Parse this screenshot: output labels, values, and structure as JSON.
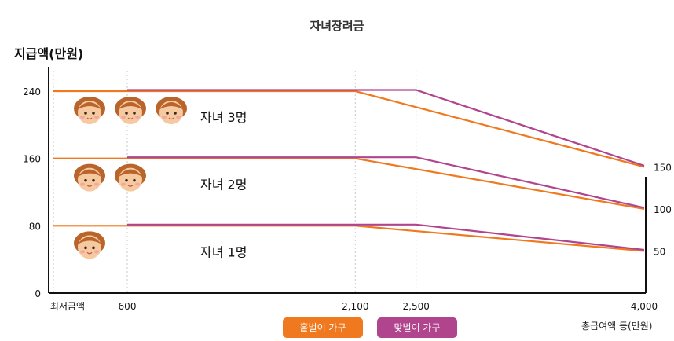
{
  "chart_data": {
    "type": "line",
    "title": "자녀장려금",
    "ylabel": "지급액(만원)",
    "xlabel": "총급여액 등(만원)",
    "x_ticks": [
      "최저금액",
      "600",
      "2,100",
      "2,500",
      "4,000"
    ],
    "y_ticks": [
      "0",
      "80",
      "160",
      "240"
    ],
    "right_ticks": [
      "150",
      "100",
      "50"
    ],
    "ylim": [
      0,
      240
    ],
    "groups": [
      {
        "label": "자녀 3명",
        "kids": 3,
        "max": 240,
        "end": 150
      },
      {
        "label": "자녀 2명",
        "kids": 2,
        "max": 160,
        "end": 100
      },
      {
        "label": "자녀 1명",
        "kids": 1,
        "max": 80,
        "end": 50
      }
    ],
    "series": [
      {
        "name": "홑벌이 가구",
        "color": "#f0781e",
        "points": [
          [
            0,
            "max"
          ],
          [
            2100,
            "max"
          ],
          [
            4000,
            "end"
          ]
        ]
      },
      {
        "name": "맞벌이 가구",
        "color": "#b0458e",
        "points": [
          [
            600,
            "max"
          ],
          [
            2500,
            "max"
          ],
          [
            4000,
            "end"
          ]
        ]
      }
    ]
  }
}
